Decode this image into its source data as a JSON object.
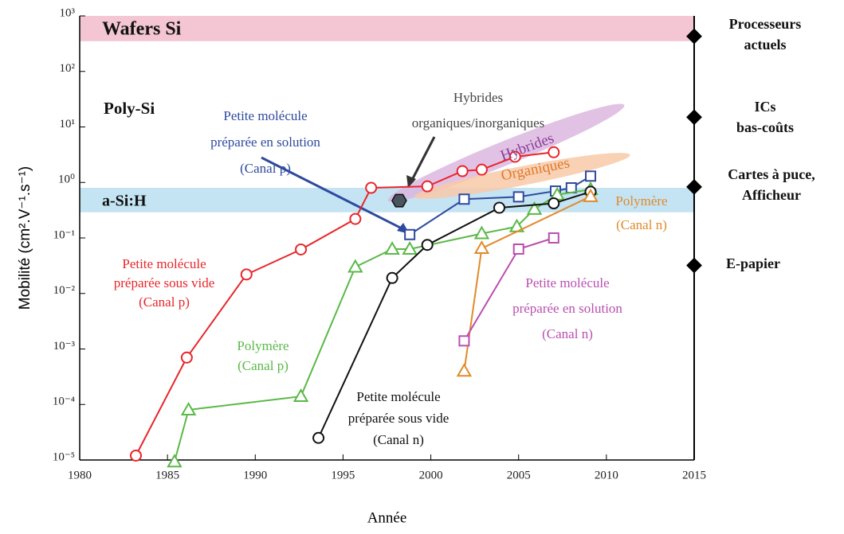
{
  "chart_data": {
    "type": "line",
    "xlabel": "Année",
    "ylabel": "Mobilité (cm².V⁻¹.s⁻¹)",
    "xlim": [
      1980,
      2015
    ],
    "xticks": [
      1980,
      1985,
      1990,
      1995,
      2000,
      2005,
      2010,
      2015
    ],
    "ylim": [
      1e-05,
      1000
    ],
    "log_y": true,
    "yticks": [
      {
        "value": 1e-05,
        "label": "10⁻⁵"
      },
      {
        "value": 0.0001,
        "label": "10⁻⁴"
      },
      {
        "value": 0.001,
        "label": "10⁻³"
      },
      {
        "value": 0.01,
        "label": "10⁻²"
      },
      {
        "value": 0.1,
        "label": "10⁻¹"
      },
      {
        "value": 1,
        "label": "10⁰"
      },
      {
        "value": 10,
        "label": "10¹"
      },
      {
        "value": 100,
        "label": "10²"
      },
      {
        "value": 1000,
        "label": "10³"
      }
    ],
    "bands": [
      {
        "label": "Wafers Si",
        "range": [
          350,
          1000
        ],
        "color": "#f4c6d3"
      },
      {
        "label": "a-Si:H",
        "range": [
          0.29,
          0.8
        ],
        "color": "#c4e4f3"
      }
    ],
    "region_label": "Poly-Si",
    "series": [
      {
        "label": [
          "Petite molécule",
          "préparée sous vide",
          "(Canal p)"
        ],
        "color": "#e8262a",
        "marker": "circle",
        "x": [
          1983.2,
          1986.1,
          1989.5,
          1992.6,
          1995.7,
          1996.6,
          1999.8,
          2001.8,
          2002.9,
          2004.8,
          2007.0
        ],
        "values": [
          1.2e-05,
          0.0007,
          0.022,
          0.062,
          0.22,
          0.8,
          0.85,
          1.6,
          1.7,
          2.9,
          3.5
        ]
      },
      {
        "label": [
          "Petite molécule",
          "préparée en solution",
          "(Canal p)"
        ],
        "color": "#2e4a9e",
        "marker": "square",
        "x": [
          1998.8,
          2001.9,
          2005.0,
          2007.1,
          2008.0,
          2009.1
        ],
        "values": [
          0.115,
          0.5,
          0.55,
          0.7,
          0.8,
          1.3
        ]
      },
      {
        "label": [
          "Polymère",
          "(Canal p)"
        ],
        "color": "#5ab947",
        "marker": "triangle",
        "x": [
          1985.4,
          1986.2,
          1992.6,
          1995.7,
          1997.8,
          1998.8,
          2002.9,
          2004.9,
          2005.9,
          2007.2,
          2009.1
        ],
        "values": [
          9.3e-06,
          8e-05,
          0.00014,
          0.03,
          0.063,
          0.063,
          0.12,
          0.16,
          0.33,
          0.6,
          0.75
        ]
      },
      {
        "label": [
          "Petite molécule",
          "préparée sous vide",
          "(Canal n)"
        ],
        "color": "#111111",
        "marker": "circle",
        "x": [
          1993.6,
          1997.8,
          1999.8,
          2003.9,
          2007.0,
          2009.1
        ],
        "values": [
          2.5e-05,
          0.019,
          0.075,
          0.35,
          0.42,
          0.68
        ]
      },
      {
        "label": [
          "Polymère",
          "(Canal n)"
        ],
        "color": "#e08a2a",
        "marker": "triangle",
        "x": [
          2001.9,
          2002.9,
          2009.1
        ],
        "values": [
          0.0004,
          0.065,
          0.56
        ]
      },
      {
        "label": [
          "Petite molécule",
          "préparée en solution",
          "(Canal n)"
        ],
        "color": "#b94fb0",
        "marker": "square",
        "x": [
          2001.9,
          2005.0,
          2007.0
        ],
        "values": [
          0.0014,
          0.063,
          0.1
        ]
      }
    ],
    "hybrid_point": {
      "label": [
        "Hybrides",
        "organiques/inorganiques"
      ],
      "x": 1998.2,
      "value": 0.47,
      "color": "#4a5560"
    },
    "shape_labels": [
      "Hybrides",
      "Organiques"
    ],
    "levels": [
      {
        "label": [
          "Processeurs",
          "actuels"
        ],
        "value": 430
      },
      {
        "label": [
          "ICs",
          "bas-coûts"
        ],
        "value": 15
      },
      {
        "label": [
          "Cartes à puce,",
          "Afficheur"
        ],
        "value": 0.83
      },
      {
        "label": [
          "E-papier"
        ],
        "value": 0.032
      }
    ]
  }
}
